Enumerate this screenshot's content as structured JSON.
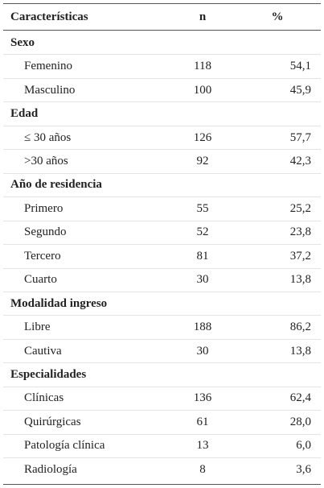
{
  "table": {
    "header": [
      "Características",
      "n",
      "%"
    ],
    "sections": [
      {
        "title": "Sexo",
        "rows": [
          [
            "Femenino",
            "118",
            "54,1"
          ],
          [
            "Masculino",
            "100",
            "45,9"
          ]
        ]
      },
      {
        "title": "Edad",
        "rows": [
          [
            "≤ 30 años",
            "126",
            "57,7"
          ],
          [
            ">30 años",
            "92",
            "42,3"
          ]
        ]
      },
      {
        "title": "Año de residencia",
        "rows": [
          [
            "Primero",
            "55",
            "25,2"
          ],
          [
            "Segundo",
            "52",
            "23,8"
          ],
          [
            "Tercero",
            "81",
            "37,2"
          ],
          [
            "Cuarto",
            "30",
            "13,8"
          ]
        ]
      },
      {
        "title": "Modalidad ingreso",
        "rows": [
          [
            "Libre",
            "188",
            "86,2"
          ],
          [
            "Cautiva",
            "30",
            "13,8"
          ]
        ]
      },
      {
        "title": "Especialidades",
        "rows": [
          [
            "Clínicas",
            "136",
            "62,4"
          ],
          [
            "Quirúrgicas",
            "61",
            "28,0"
          ],
          [
            "Patología clínica",
            "13",
            "6,0"
          ],
          [
            "Radiología",
            "8",
            "3,6"
          ]
        ]
      }
    ]
  }
}
